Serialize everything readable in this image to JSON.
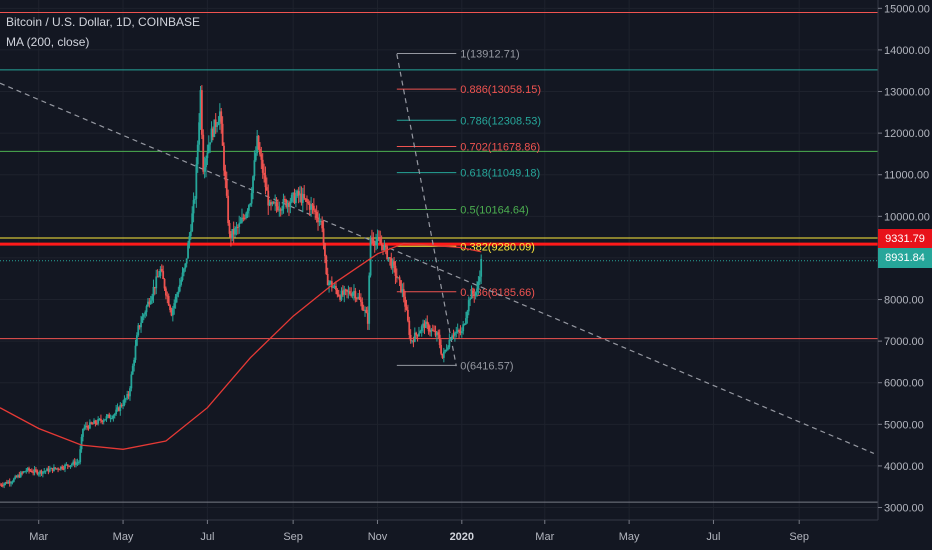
{
  "chart_data": {
    "type": "candlestick",
    "title": "Bitcoin / U.S. Dollar, 1D, COINBASE",
    "indicator": "MA (200, close)",
    "x_ticks": [
      "Mar",
      "May",
      "Jul",
      "Sep",
      "Nov",
      "2020",
      "Mar",
      "May",
      "Jul",
      "Sep"
    ],
    "y_ticks": [
      "3000.00",
      "4000.00",
      "5000.00",
      "6000.00",
      "7000.00",
      "8000.00",
      "9000.00",
      "10000.00",
      "11000.00",
      "12000.00",
      "13000.00",
      "14000.00",
      "15000.00"
    ],
    "ylim": [
      2700,
      15200
    ],
    "price_path": [
      [
        "2019-02-01",
        3550
      ],
      [
        "2019-02-10",
        3650
      ],
      [
        "2019-02-20",
        3900
      ],
      [
        "2019-03-01",
        3850
      ],
      [
        "2019-03-15",
        3950
      ],
      [
        "2019-03-30",
        4100
      ],
      [
        "2019-04-02",
        4900
      ],
      [
        "2019-04-15",
        5100
      ],
      [
        "2019-04-25",
        5250
      ],
      [
        "2019-05-05",
        5700
      ],
      [
        "2019-05-12",
        7300
      ],
      [
        "2019-05-20",
        8000
      ],
      [
        "2019-05-28",
        8700
      ],
      [
        "2019-06-05",
        7700
      ],
      [
        "2019-06-15",
        8800
      ],
      [
        "2019-06-22",
        10500
      ],
      [
        "2019-06-26",
        13000
      ],
      [
        "2019-06-28",
        11200
      ],
      [
        "2019-07-03",
        11900
      ],
      [
        "2019-07-10",
        12500
      ],
      [
        "2019-07-17",
        9500
      ],
      [
        "2019-07-25",
        9800
      ],
      [
        "2019-08-01",
        10400
      ],
      [
        "2019-08-06",
        11800
      ],
      [
        "2019-08-15",
        10200
      ],
      [
        "2019-08-25",
        10300
      ],
      [
        "2019-09-05",
        10500
      ],
      [
        "2019-09-15",
        10200
      ],
      [
        "2019-09-22",
        9800
      ],
      [
        "2019-09-25",
        8500
      ],
      [
        "2019-10-05",
        8100
      ],
      [
        "2019-10-15",
        8200
      ],
      [
        "2019-10-22",
        7800
      ],
      [
        "2019-10-25",
        7500
      ],
      [
        "2019-10-27",
        9500
      ],
      [
        "2019-11-05",
        9300
      ],
      [
        "2019-11-12",
        8800
      ],
      [
        "2019-11-20",
        8100
      ],
      [
        "2019-11-25",
        7000
      ],
      [
        "2019-12-05",
        7400
      ],
      [
        "2019-12-15",
        7100
      ],
      [
        "2019-12-18",
        6600
      ],
      [
        "2019-12-25",
        7200
      ],
      [
        "2020-01-01",
        7200
      ],
      [
        "2020-01-07",
        8100
      ],
      [
        "2020-01-12",
        8200
      ],
      [
        "2020-01-15",
        8900
      ]
    ],
    "ma200_path": [
      [
        "2019-02-01",
        5400
      ],
      [
        "2019-03-01",
        4900
      ],
      [
        "2019-04-01",
        4500
      ],
      [
        "2019-05-01",
        4400
      ],
      [
        "2019-06-01",
        4600
      ],
      [
        "2019-07-01",
        5400
      ],
      [
        "2019-08-01",
        6600
      ],
      [
        "2019-09-01",
        7600
      ],
      [
        "2019-10-01",
        8400
      ],
      [
        "2019-11-01",
        9100
      ],
      [
        "2019-11-20",
        9350
      ],
      [
        "2019-12-10",
        9300
      ],
      [
        "2019-12-31",
        9250
      ],
      [
        "2020-01-15",
        9150
      ]
    ],
    "fib_levels": [
      {
        "label": "1(13912.71)",
        "value": 13912.71,
        "color": "#9598a1"
      },
      {
        "label": "0.886(13058.15)",
        "value": 13058.15,
        "color": "#ef5350"
      },
      {
        "label": "0.786(12308.53)",
        "value": 12308.53,
        "color": "#26a69a"
      },
      {
        "label": "0.702(11678.86)",
        "value": 11678.86,
        "color": "#ef5350"
      },
      {
        "label": "0.618(11049.18)",
        "value": 11049.18,
        "color": "#26a69a"
      },
      {
        "label": "0.5(10164.64)",
        "value": 10164.64,
        "color": "#4caf50"
      },
      {
        "label": "0.382(9280.09)",
        "value": 9280.09,
        "color": "#ffeb3b"
      },
      {
        "label": "0.236(8185.66)",
        "value": 8185.66,
        "color": "#ef5350"
      },
      {
        "label": "0(6416.57)",
        "value": 6416.57,
        "color": "#9598a1"
      }
    ],
    "horizontal_lines": [
      {
        "value": 14900,
        "color": "#ef5350"
      },
      {
        "value": 13520,
        "color": "#26a69a"
      },
      {
        "value": 11560,
        "color": "#4caf50"
      },
      {
        "value": 9480,
        "color": "#ffeb3b"
      },
      {
        "value": 9331.79,
        "color": "#ff1a1a"
      },
      {
        "value": 8931.84,
        "color": "#26a69a"
      },
      {
        "value": 7060,
        "color": "#ef5350"
      },
      {
        "value": 3130,
        "color": "#787b86"
      }
    ],
    "trendlines": [
      {
        "from": [
          "2019-02-01",
          13200
        ],
        "to": [
          "2020-10-25",
          4300
        ],
        "style": "dashed"
      },
      {
        "from": [
          "2019-11-15",
          13900
        ],
        "to": [
          "2019-12-28",
          6400
        ],
        "style": "dashed"
      }
    ],
    "price_labels": [
      {
        "text": "9331.79",
        "value": 9331.79,
        "color": "#e8121a"
      },
      {
        "text": "8931.84",
        "value": 8931.84,
        "color": "#26a69a"
      }
    ],
    "x_range": [
      "2019-02-01",
      "2020-10-28"
    ]
  }
}
